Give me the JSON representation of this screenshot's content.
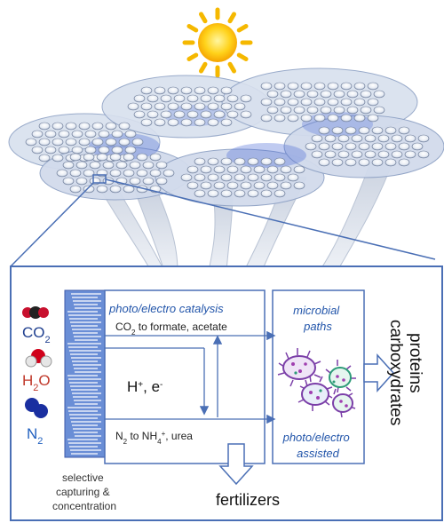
{
  "diagram": {
    "molecules": {
      "co2": {
        "label": "CO",
        "subscript": "2",
        "color": "#1f3f8f"
      },
      "h2o": {
        "label": "H",
        "subscript": "2",
        "suffix": "O",
        "color": "#c0392b"
      },
      "n2": {
        "label": "N",
        "subscript": "2",
        "color": "#1f5fbf"
      }
    },
    "membrane_label": {
      "line1": "selective",
      "line2": "capturing &",
      "line3": "concentration"
    },
    "catalysis_box": {
      "title": "photo/electro catalysis",
      "co2_product_prefix": "CO",
      "co2_product_sub": "2",
      "co2_product_suffix": " to formate, acetate",
      "carriers_main": "H",
      "carriers_plus": "+",
      "carriers_mid": ", e",
      "carriers_minus": "-",
      "n2_product_prefix": "N",
      "n2_product_sub": "2",
      "n2_product_mid": " to NH",
      "n2_product_sub2": "4",
      "n2_product_sup": "+",
      "n2_product_suffix": ", urea"
    },
    "microbial_box": {
      "top_line1": "microbial",
      "top_line2": "paths",
      "bottom_line1": "photo/electro",
      "bottom_line2": "assisted"
    },
    "outputs": {
      "right_line1": "proteins",
      "right_line2": "carboxydrates",
      "bottom": "fertilizers"
    },
    "colors": {
      "frame": "#4a6fb5",
      "blue_text": "#2255aa",
      "sun": "#f5b800",
      "canopy": "#9fb4d6"
    }
  }
}
